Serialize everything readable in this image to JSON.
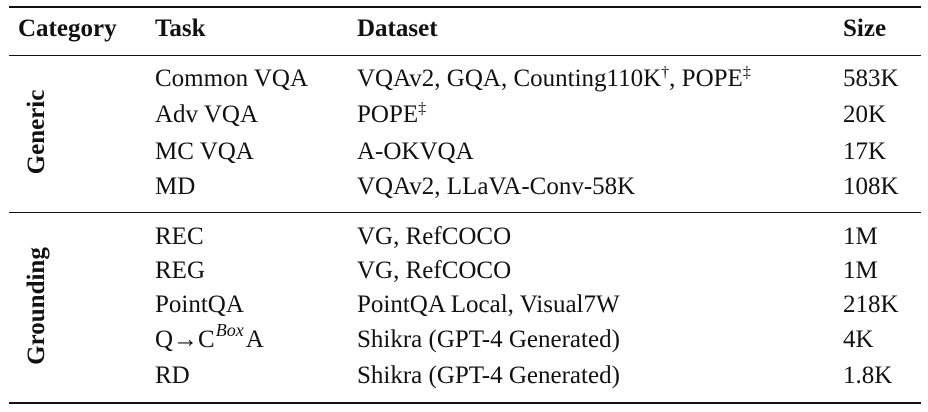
{
  "header": {
    "category": "Category",
    "task": "Task",
    "dataset": "Dataset",
    "size": "Size"
  },
  "groups": [
    {
      "category": "Generic",
      "rows": [
        {
          "task": "Common VQA",
          "dataset": "VQAv2, GQA, Counting110K",
          "dataset_mark": "†",
          "dataset_tail": ", POPE",
          "dataset_tail_mark": "‡",
          "size": "583K"
        },
        {
          "task": "Adv VQA",
          "dataset": "POPE",
          "dataset_mark": "‡",
          "size": "20K"
        },
        {
          "task": "MC VQA",
          "dataset": "A-OKVQA",
          "size": "17K"
        },
        {
          "task": "MD",
          "dataset": "VQAv2, LLaVA-Conv-58K",
          "size": "108K"
        }
      ]
    },
    {
      "category": "Grounding",
      "rows": [
        {
          "task": "REC",
          "dataset": "VG, RefCOCO",
          "size": "1M"
        },
        {
          "task": "REG",
          "dataset": "VG, RefCOCO",
          "size": "1M"
        },
        {
          "task": "PointQA",
          "dataset": "PointQA Local, Visual7W",
          "size": "218K"
        },
        {
          "task_pre": "Q→C",
          "task_sup": "Box",
          "task_post": "A",
          "dataset": "Shikra (GPT-4 Generated)",
          "size": "4K"
        },
        {
          "task": "RD",
          "dataset": "Shikra (GPT-4 Generated)",
          "size": "1.8K"
        }
      ]
    }
  ]
}
